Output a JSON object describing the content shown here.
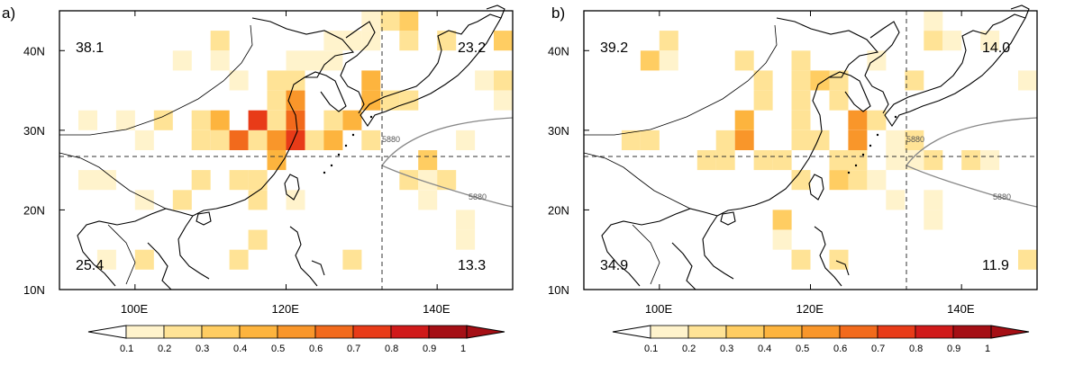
{
  "panels": [
    {
      "id": "a",
      "label": "a)",
      "quadrants": {
        "nw": "38.1",
        "ne": "23.2",
        "sw": "25.4",
        "se": "13.3"
      },
      "contour_label": "5880"
    },
    {
      "id": "b",
      "label": "b)",
      "quadrants": {
        "nw": "39.2",
        "ne": "14.0",
        "sw": "34.9",
        "se": "11.9"
      },
      "contour_label": "5880"
    }
  ],
  "axes": {
    "lon_ticks": [
      "100E",
      "120E",
      "140E"
    ],
    "lat_ticks": [
      "40N",
      "30N",
      "20N",
      "10N"
    ],
    "lon_range": [
      90,
      150
    ],
    "lat_range": [
      10,
      45
    ],
    "divider_lon": 132.5,
    "divider_lat": 27.5
  },
  "colorbar": {
    "levels": [
      "0.1",
      "0.2",
      "0.3",
      "0.4",
      "0.5",
      "0.6",
      "0.7",
      "0.8",
      "0.9",
      "1"
    ],
    "colors": [
      "#ffffff",
      "#fff3cc",
      "#ffe396",
      "#ffcd62",
      "#fdb43e",
      "#f9962a",
      "#f26a1c",
      "#e83b18",
      "#d01a1a",
      "#a50f15",
      "#a50f15"
    ]
  },
  "cell_colors": [
    "#fff3cc",
    "#ffe396",
    "#ffcd62",
    "#fdb43e",
    "#f9962a",
    "#f26a1c",
    "#e83b18",
    "#d01a1a",
    "#a50f15"
  ],
  "coast_color": "#000000",
  "contour_color": "#888888"
}
